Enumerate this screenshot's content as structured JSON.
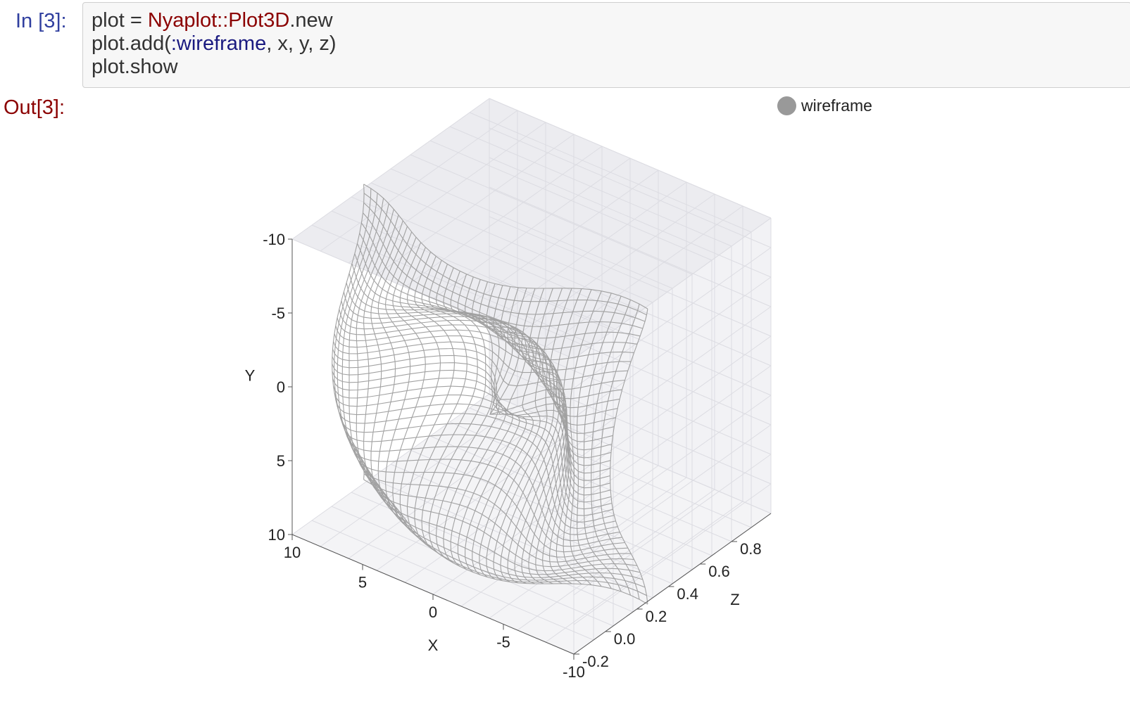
{
  "input_cell": {
    "prompt": "In [3]:",
    "lines": [
      [
        {
          "t": "plot = ",
          "c": ""
        },
        {
          "t": "Nyaplot",
          "c": "const"
        },
        {
          "t": "::",
          "c": "op"
        },
        {
          "t": "Plot3D",
          "c": "const"
        },
        {
          "t": ".new",
          "c": ""
        }
      ],
      [
        {
          "t": "plot.add(",
          "c": ""
        },
        {
          "t": ":wireframe",
          "c": "sym"
        },
        {
          "t": ", x, y, z)",
          "c": ""
        }
      ],
      [
        {
          "t": "plot.show",
          "c": ""
        }
      ]
    ]
  },
  "output_cell": {
    "prompt": "Out[3]:"
  },
  "chart_data": {
    "type": "wireframe",
    "title": "",
    "xlabel": "X",
    "ylabel": "Y",
    "zlabel": "Z",
    "xlim": [
      -10,
      10
    ],
    "ylim": [
      -10,
      10
    ],
    "zlim": [
      -0.2,
      0.8
    ],
    "x_ticks": [
      "10",
      "5",
      "0",
      "-5",
      "-10"
    ],
    "y_ticks": [
      "-10",
      "-5",
      "0",
      "5",
      "10"
    ],
    "z_ticks": [
      "-0.2",
      "0.0",
      "0.2",
      "0.4",
      "0.6",
      "0.8"
    ],
    "grid": true,
    "legend": {
      "position": "top-right",
      "entries": [
        {
          "label": "wireframe",
          "color": "#999999"
        }
      ]
    },
    "series": [
      {
        "name": "wireframe",
        "color": "#999999",
        "grid_resolution": 40
      }
    ]
  }
}
